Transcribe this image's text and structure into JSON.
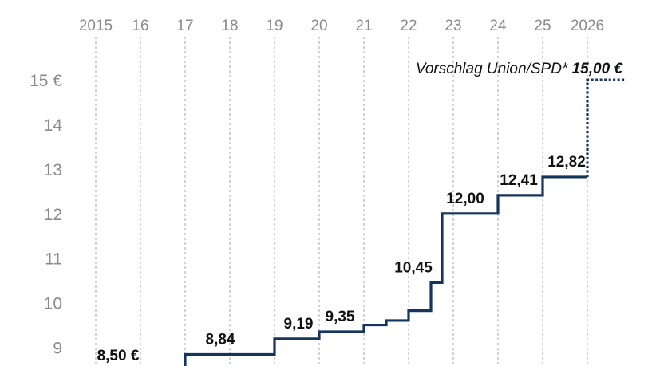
{
  "colors": {
    "line": "#16355e",
    "grid": "#c4c4c4",
    "tick_text": "#8a8a8a",
    "label_text": "#111111"
  },
  "chart_data": {
    "type": "line",
    "style": "step",
    "x_axis": {
      "ticks": [
        {
          "value": 2015,
          "label": "2015"
        },
        {
          "value": 2016,
          "label": "16"
        },
        {
          "value": 2017,
          "label": "17"
        },
        {
          "value": 2018,
          "label": "18"
        },
        {
          "value": 2019,
          "label": "19"
        },
        {
          "value": 2020,
          "label": "20"
        },
        {
          "value": 2021,
          "label": "21"
        },
        {
          "value": 2022,
          "label": "22"
        },
        {
          "value": 2023,
          "label": "23"
        },
        {
          "value": 2024,
          "label": "24"
        },
        {
          "value": 2025,
          "label": "25"
        },
        {
          "value": 2026,
          "label": "2026"
        }
      ],
      "range": [
        2014.5,
        2026.6
      ],
      "position": "top"
    },
    "y_axis": {
      "ticks": [
        {
          "value": 9,
          "label": "9"
        },
        {
          "value": 10,
          "label": "10"
        },
        {
          "value": 11,
          "label": "11"
        },
        {
          "value": 12,
          "label": "12"
        },
        {
          "value": 13,
          "label": "13"
        },
        {
          "value": 14,
          "label": "14"
        },
        {
          "value": 15,
          "label": "15 €"
        }
      ],
      "range": [
        8.6,
        15.9
      ]
    },
    "grid": {
      "vertical": true,
      "horizontal": false,
      "style": "dotted"
    },
    "series": [
      {
        "points": [
          {
            "x": 2015.0,
            "y": 8.5
          },
          {
            "x": 2017.0,
            "y": 8.84
          },
          {
            "x": 2019.0,
            "y": 9.19
          },
          {
            "x": 2020.0,
            "y": 9.35
          },
          {
            "x": 2021.0,
            "y": 9.5
          },
          {
            "x": 2021.5,
            "y": 9.6
          },
          {
            "x": 2022.0,
            "y": 9.82
          },
          {
            "x": 2022.5,
            "y": 10.45
          },
          {
            "x": 2022.75,
            "y": 12.0
          },
          {
            "x": 2024.0,
            "y": 12.41
          },
          {
            "x": 2025.0,
            "y": 12.82
          }
        ],
        "end_x": 2026.0
      }
    ],
    "labels": [
      {
        "text": "8,50 €",
        "x": 2015.0,
        "y": 8.5
      },
      {
        "text": "8,84",
        "x": 2017.0,
        "y": 8.84
      },
      {
        "text": "9,19",
        "x": 2019.0,
        "y": 9.19
      },
      {
        "text": "9,35",
        "x": 2020.0,
        "y": 9.35
      },
      {
        "text": "10,45",
        "x": 2022.5,
        "y": 10.45
      },
      {
        "text": "12,00",
        "x": 2022.75,
        "y": 12.0
      },
      {
        "text": "12,41",
        "x": 2024.0,
        "y": 12.41
      },
      {
        "text": "12,82",
        "x": 2025.0,
        "y": 12.82
      }
    ],
    "proposal": {
      "text": "Vorschlag Union/SPD*",
      "value_label": "15,00 €",
      "from_x": 2026.0,
      "from_y": 12.82,
      "y": 15.0,
      "end_x": 2027.0
    }
  }
}
